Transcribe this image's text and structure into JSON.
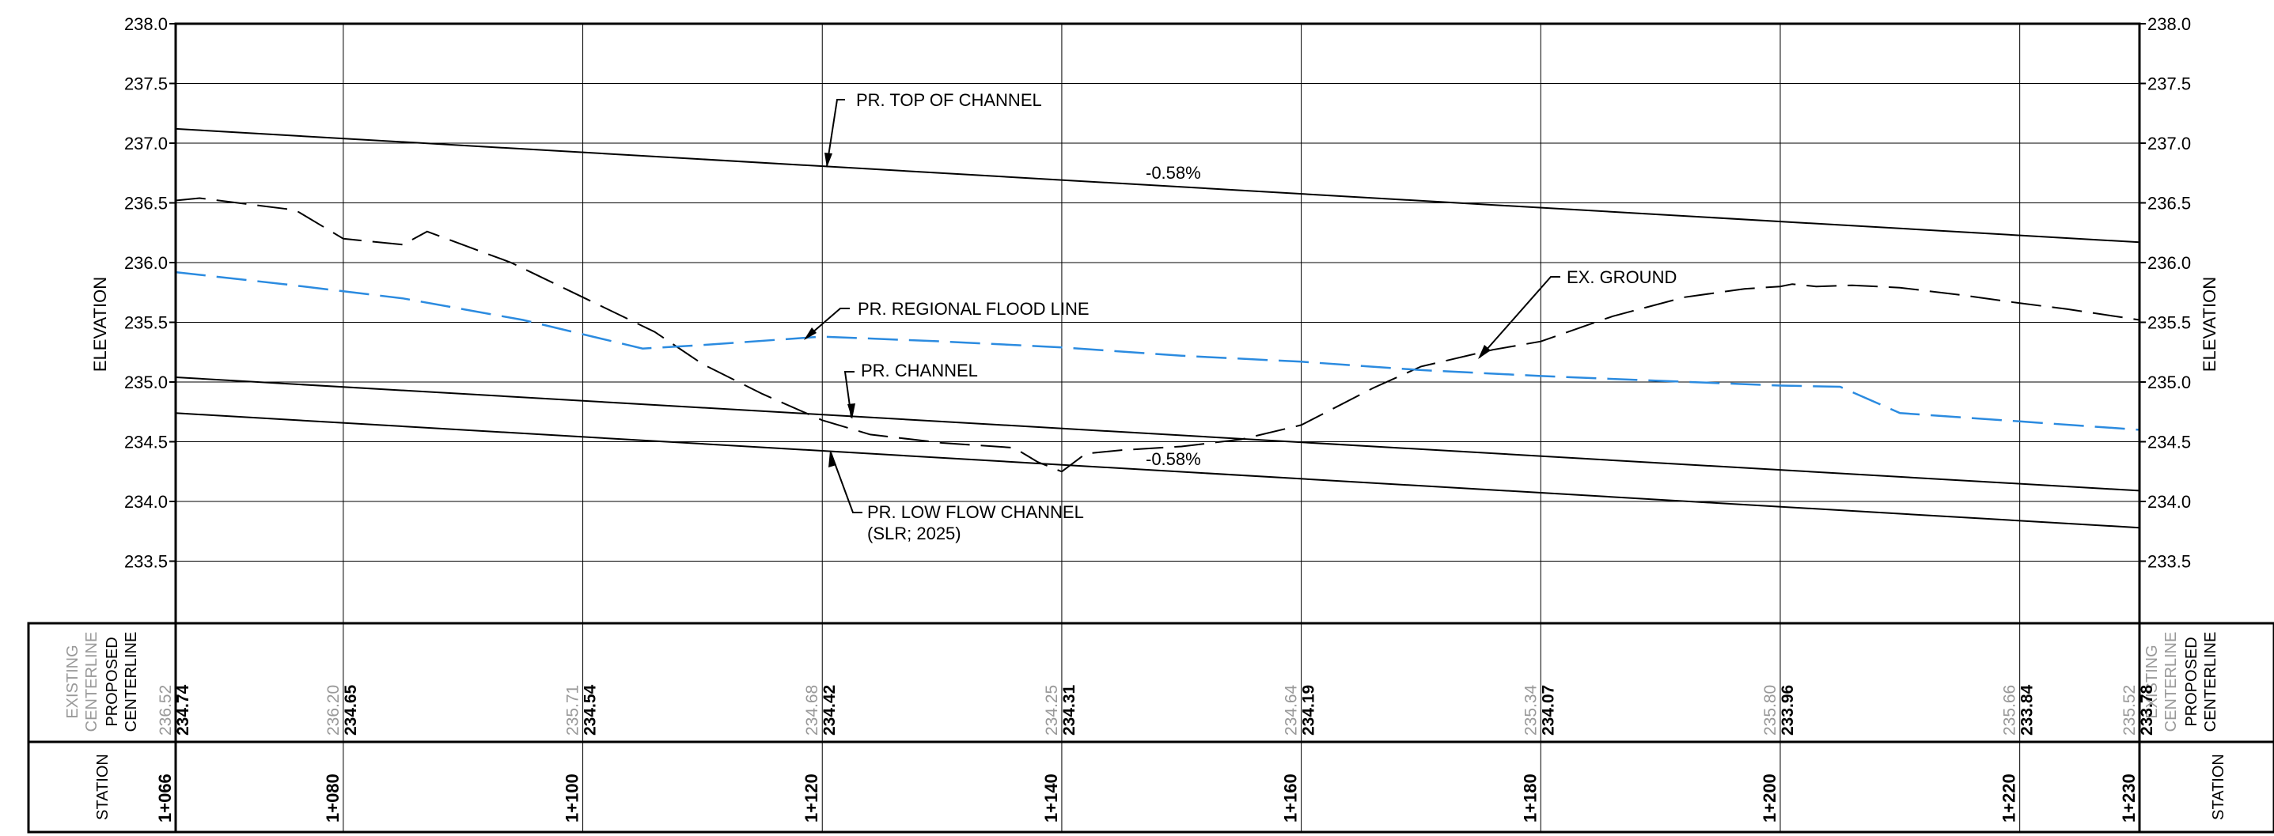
{
  "colors": {
    "line": "#000000",
    "flood": "#2b8be0",
    "existing": "#999999",
    "grid": "#000000"
  },
  "y_ticks": [
    "238.0",
    "237.5",
    "237.0",
    "236.5",
    "236.0",
    "235.5",
    "235.0",
    "234.5",
    "234.0",
    "233.5"
  ],
  "axis_label_left": "ELEVATION",
  "axis_label_right": "ELEVATION",
  "callouts": {
    "top_of_channel": "PR. TOP OF CHANNEL",
    "grade_top": "-0.58%",
    "ex_ground": "EX. GROUND",
    "regional_flood": "PR. REGIONAL FLOOD LINE",
    "channel": "PR. CHANNEL",
    "grade_channel": "-0.58%",
    "low_flow_1": "PR. LOW FLOW CHANNEL",
    "low_flow_2": "(SLR; 2025)"
  },
  "table": {
    "existing_label_1": "EXISTING",
    "existing_label_2": "CENTERLINE",
    "proposed_label_1": "PROPOSED",
    "proposed_label_2": "CENTERLINE",
    "station_label": "STATION",
    "stations": [
      "1+066",
      "1+080",
      "1+100",
      "1+120",
      "1+140",
      "1+160",
      "1+180",
      "1+200",
      "1+220",
      "1+230"
    ],
    "existing_values": [
      "236.52",
      "236.20",
      "235.71",
      "234.68",
      "234.25",
      "234.64",
      "235.34",
      "235.80",
      "235.66",
      "235.52"
    ],
    "proposed_values": [
      "234.74",
      "234.65",
      "234.54",
      "234.42",
      "234.31",
      "234.19",
      "234.07",
      "233.96",
      "233.84",
      "233.78"
    ]
  },
  "chart_data": {
    "type": "line",
    "xlabel": "STATION",
    "ylabel": "ELEVATION",
    "x_range": [
      1066,
      1230
    ],
    "ylim": [
      233.0,
      238.0
    ],
    "grid": true,
    "series": [
      {
        "name": "PR. TOP OF CHANNEL",
        "style": "solid",
        "x": [
          1066,
          1230
        ],
        "y": [
          237.12,
          236.17
        ]
      },
      {
        "name": "PR. CHANNEL",
        "style": "solid",
        "x": [
          1066,
          1230
        ],
        "y": [
          235.04,
          234.09
        ]
      },
      {
        "name": "PR. LOW FLOW CHANNEL",
        "style": "solid",
        "x": [
          1066,
          1230
        ],
        "y": [
          234.74,
          233.78
        ]
      },
      {
        "name": "EX. GROUND",
        "style": "dashed",
        "x": [
          1066,
          1068,
          1076,
          1080,
          1085,
          1087,
          1094,
          1100,
          1106,
          1110,
          1115,
          1120,
          1124,
          1130,
          1136,
          1138,
          1140,
          1142,
          1145,
          1150,
          1155,
          1160,
          1166,
          1170,
          1176,
          1180,
          1186,
          1192,
          1197,
          1200,
          1201,
          1203,
          1206,
          1210,
          1215,
          1220,
          1224,
          1230
        ],
        "y": [
          236.52,
          236.54,
          236.44,
          236.2,
          236.15,
          236.26,
          236.0,
          235.71,
          235.42,
          235.15,
          234.9,
          234.68,
          234.56,
          234.49,
          234.45,
          234.33,
          234.25,
          234.4,
          234.43,
          234.46,
          234.52,
          234.64,
          234.95,
          235.13,
          235.27,
          235.34,
          235.55,
          235.71,
          235.78,
          235.8,
          235.82,
          235.8,
          235.81,
          235.79,
          235.73,
          235.66,
          235.61,
          235.52
        ]
      },
      {
        "name": "PR. REGIONAL FLOOD LINE",
        "style": "dashed-blue",
        "x": [
          1066,
          1075,
          1085,
          1095,
          1105,
          1110,
          1120,
          1130,
          1140,
          1150,
          1160,
          1170,
          1180,
          1190,
          1200,
          1205,
          1210,
          1220,
          1230
        ],
        "y": [
          235.92,
          235.82,
          235.7,
          235.52,
          235.28,
          235.31,
          235.38,
          235.34,
          235.29,
          235.22,
          235.17,
          235.1,
          235.05,
          235.01,
          234.97,
          234.96,
          234.74,
          234.67,
          234.6
        ]
      }
    ]
  }
}
